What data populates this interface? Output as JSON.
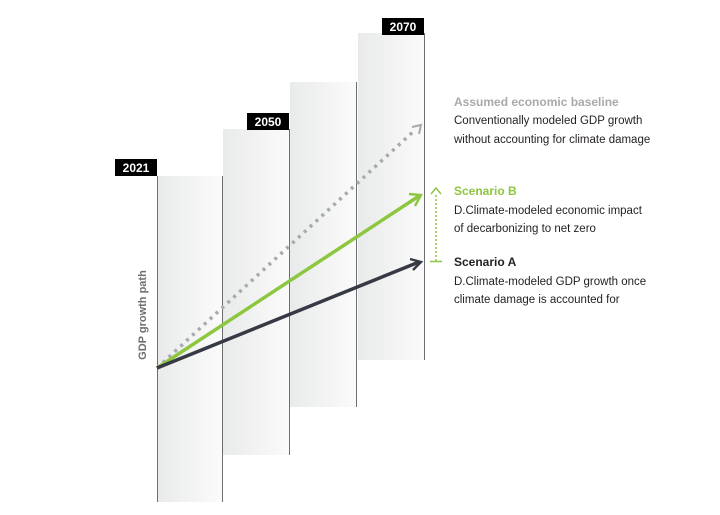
{
  "y_axis_label": "GDP growth path",
  "years": [
    "2021",
    "2050",
    "2070"
  ],
  "legend": {
    "baseline": {
      "title": "Assumed economic baseline",
      "line1": "Conventionally modeled GDP growth",
      "line2": "without accounting for climate damage"
    },
    "scenario_b": {
      "title": "Scenario B",
      "line1": "D.Climate-modeled economic impact",
      "line2": "of decarbonizing to net zero"
    },
    "scenario_a": {
      "title": "Scenario A",
      "line1": "D.Climate-modeled GDP growth once",
      "line2": "climate damage is accounted for"
    }
  },
  "colors": {
    "baseline": "#a7a9ac",
    "scenario_b": "#8dc63f",
    "scenario_a": "#363a45",
    "year_badge": "#000000",
    "panel_line": "#6d6e71"
  }
}
